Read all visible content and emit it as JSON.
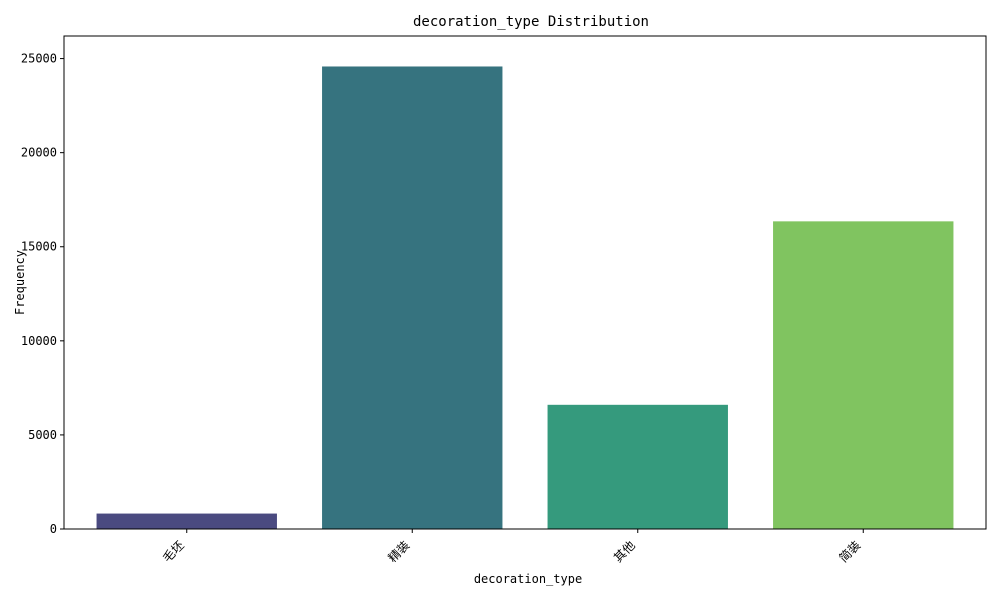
{
  "chart_data": {
    "type": "bar",
    "title": "decoration_type Distribution",
    "xlabel": "decoration_type",
    "ylabel": "Frequency",
    "categories": [
      "毛坯",
      "精装",
      "其他",
      "简装"
    ],
    "values": [
      820,
      24580,
      6600,
      16350
    ],
    "ylim": [
      0,
      26200
    ],
    "yticks": [
      0,
      5000,
      10000,
      15000,
      20000,
      25000
    ],
    "colors": [
      "#4a4a80",
      "#36737f",
      "#359a7d",
      "#80c460"
    ],
    "grid": false,
    "legend": "none"
  }
}
